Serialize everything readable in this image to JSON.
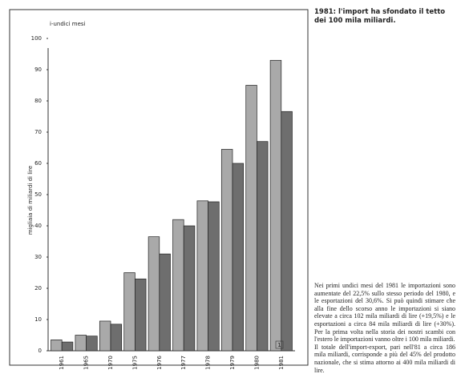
{
  "chart_data": {
    "type": "bar",
    "subtitle": "i-undici mesi",
    "y_label": "migliaia di miliardi di lire",
    "categories": [
      "1961",
      "1965",
      "1970",
      "1975",
      "1976",
      "1977",
      "1978",
      "1979",
      "1980",
      "1981"
    ],
    "footnote_mark": "1",
    "series": [
      {
        "color": "#a9a9a9",
        "values": [
          3.5,
          5,
          9.5,
          25,
          36.5,
          42,
          48,
          64.5,
          85,
          93
        ]
      },
      {
        "color": "#6e6e6e",
        "values": [
          2.8,
          4.7,
          8.5,
          23,
          31,
          40,
          47.7,
          60,
          67,
          76.6
        ]
      }
    ],
    "ylim": [
      0,
      100
    ],
    "yticks": [
      0,
      10,
      20,
      30,
      40,
      50,
      60,
      70,
      80,
      90,
      100
    ],
    "grid": false
  },
  "caption": {
    "title": "1981: l'import ha sfondato il tetto dei 100 mila miliardi.",
    "paragraphs": [
      "Nei primi undici mesi del 1981 le importazioni sono aumentate del 22,5% sullo stesso periodo del 1980, e le esportazioni del 30,6%. Si può quindi stimare che alla fine dello scorso anno le importazioni si siano elevate a circa 102 mila miliardi di lire (+19,5%) e le esportazioni a circa 84 mila miliardi di lire (+30%). Per la prima volta nella storia dei nostri scambi con l'estero le importazioni vanno oltre i 100 mila miliardi.",
      "Il totale dell'import-export, pari nell'81 a circa 186 mila miliardi, corrisponde a più del 45% del prodotto nazionale, che si stima attorno ai 400 mila miliardi di lire."
    ]
  }
}
